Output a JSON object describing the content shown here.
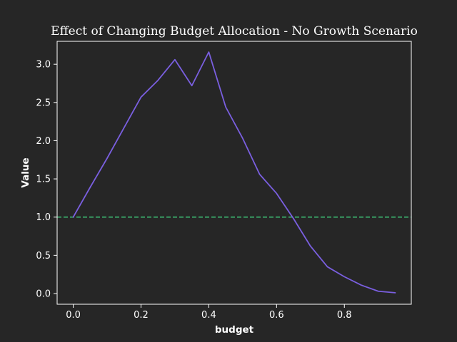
{
  "chart_data": {
    "type": "line",
    "title": "Effect of Changing Budget Allocation - No Growth Scenario",
    "xlabel": "budget",
    "ylabel": "Value",
    "xlim": [
      -0.0475,
      0.9975
    ],
    "ylim": [
      -0.14,
      3.3
    ],
    "xticks": [
      0.0,
      0.2,
      0.4,
      0.6,
      0.8
    ],
    "xtick_labels": [
      "0.0",
      "0.2",
      "0.4",
      "0.6",
      "0.8"
    ],
    "yticks": [
      0.0,
      0.5,
      1.0,
      1.5,
      2.0,
      2.5,
      3.0
    ],
    "ytick_labels": [
      "0.0",
      "0.5",
      "1.0",
      "1.5",
      "2.0",
      "2.5",
      "3.0"
    ],
    "grid": false,
    "series": [
      {
        "color": "#7a5fe0",
        "style": "solid",
        "x": [
          0.0,
          0.05,
          0.1,
          0.15,
          0.2,
          0.25,
          0.3,
          0.35,
          0.4,
          0.45,
          0.5,
          0.55,
          0.6,
          0.65,
          0.7,
          0.75,
          0.8,
          0.85,
          0.9,
          0.95
        ],
        "y": [
          1.0,
          1.39,
          1.77,
          2.17,
          2.57,
          2.79,
          3.06,
          2.72,
          3.16,
          2.44,
          2.03,
          1.56,
          1.31,
          0.98,
          0.62,
          0.35,
          0.22,
          0.11,
          0.03,
          0.01
        ]
      }
    ],
    "reference_lines": [
      {
        "orientation": "horizontal",
        "y": 1.0,
        "color": "#3dba72",
        "style": "dashed"
      }
    ],
    "background_color": "#262626",
    "axes_color": "#ffffff"
  }
}
